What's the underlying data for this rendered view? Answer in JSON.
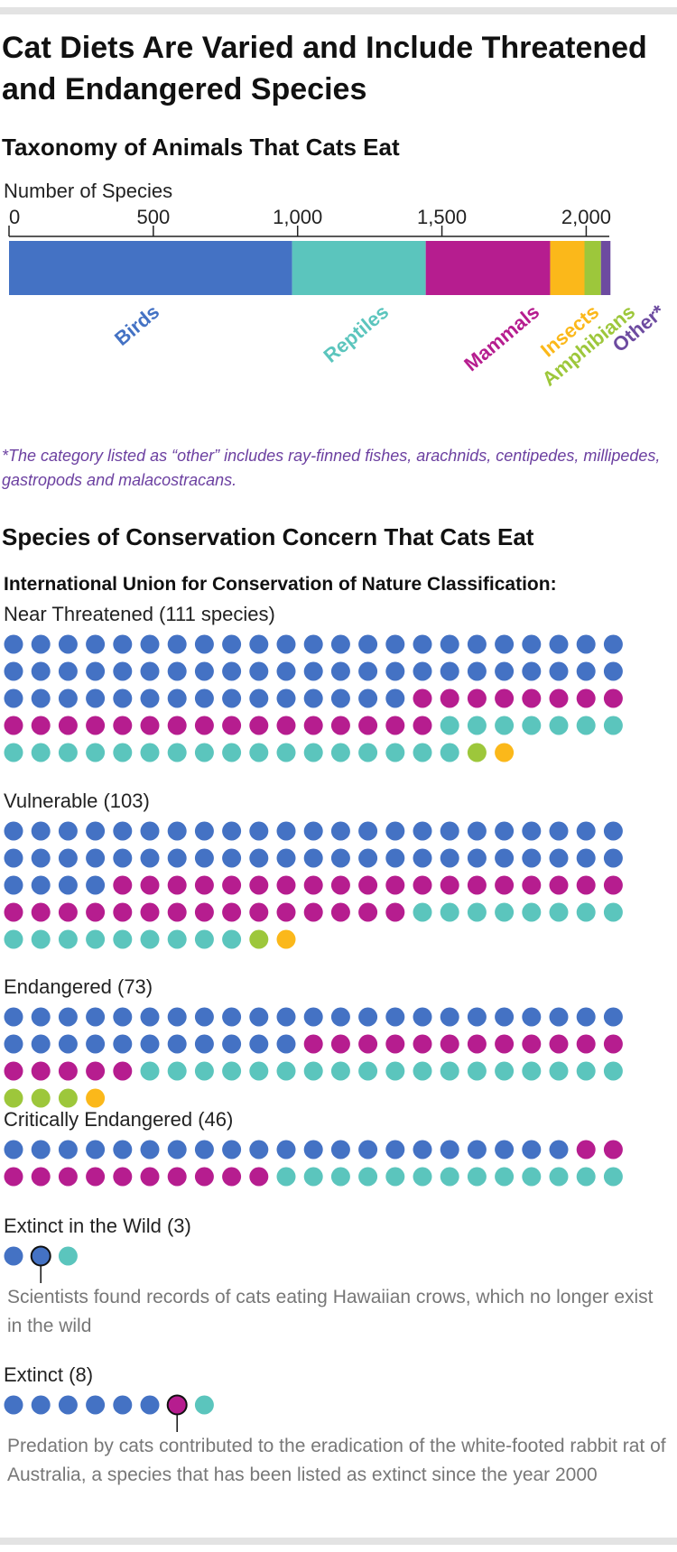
{
  "title": "Cat Diets Are Varied and Include Threatened and Endangered Species",
  "colors": {
    "Birds": "#4472c4",
    "Reptiles": "#5bc5bd",
    "Mammals": "#b61d8f",
    "Insects": "#fbb81a",
    "Amphibians": "#9dc73b",
    "Other": "#6d4ba0"
  },
  "chart_data": [
    {
      "type": "bar",
      "orientation": "horizontal",
      "stacked": true,
      "title": "Taxonomy of Animals That Cats Eat",
      "xlabel": "Number of Species",
      "xlim": [
        0,
        2080
      ],
      "xticks": [
        "0",
        "500",
        "1,000",
        "1,500",
        "2,000"
      ],
      "xtick_values": [
        0,
        500,
        1000,
        1500,
        2000
      ],
      "series": [
        {
          "name": "Birds",
          "values": [
            981
          ]
        },
        {
          "name": "Reptiles",
          "values": [
            463
          ]
        },
        {
          "name": "Mammals",
          "values": [
            431
          ]
        },
        {
          "name": "Insects",
          "values": [
            119
          ]
        },
        {
          "name": "Amphibians",
          "values": [
            57
          ]
        },
        {
          "name": "Other*",
          "values": [
            33
          ]
        }
      ],
      "footnote": "*The category listed as “other” includes ray-finned fishes, arachnids, centipedes, millipedes, gastropods and malacostracans."
    },
    {
      "type": "table",
      "title": "Species of Conservation Concern That Cats Eat",
      "subtitle": "International Union for Conservation of Nature Classification:",
      "groups": [
        {
          "label": "Near Threatened (111 species)",
          "counts": {
            "Birds": 61,
            "Mammals": 24,
            "Reptiles": 24,
            "Amphibians": 1,
            "Insects": 1
          }
        },
        {
          "label": "Vulnerable (103)",
          "counts": {
            "Birds": 50,
            "Mammals": 34,
            "Reptiles": 17,
            "Amphibians": 1,
            "Insects": 1
          }
        },
        {
          "label": "Endangered (73)",
          "counts": {
            "Birds": 34,
            "Mammals": 17,
            "Reptiles": 18,
            "Amphibians": 3,
            "Insects": 1
          }
        },
        {
          "label": "Critically Endangered (46)",
          "counts": {
            "Birds": 21,
            "Mammals": 12,
            "Reptiles": 13
          }
        },
        {
          "label": "Extinct in the Wild (3)",
          "counts": {
            "Birds": 2,
            "Reptiles": 1
          },
          "highlight_index": 1,
          "annotation": "Scientists found records of cats eating Hawaiian crows, which no longer exist in the wild"
        },
        {
          "label": "Extinct (8)",
          "counts": {
            "Birds": 6,
            "Mammals": 1,
            "Reptiles": 1
          },
          "highlight_index": 6,
          "annotation": "Predation by cats contributed to the eradication of the white-footed rabbit rat of Australia, a species that has been listed as extinct since the year 2000"
        }
      ]
    }
  ]
}
